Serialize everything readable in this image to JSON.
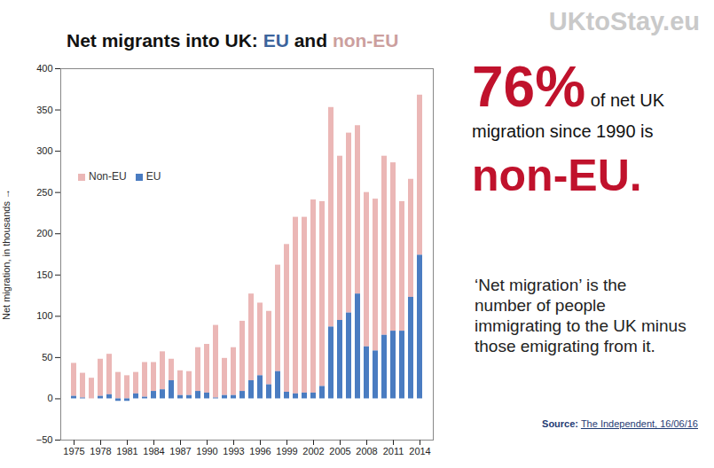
{
  "chart_data": {
    "type": "bar",
    "stacked": true,
    "title": "Net migrants into UK: EU and non-EU",
    "y_label": "Net migration, in thousands",
    "categories": [
      "1975",
      null,
      null,
      "1978",
      null,
      null,
      "1981",
      null,
      null,
      "1984",
      null,
      null,
      "1987",
      null,
      null,
      "1990",
      null,
      null,
      "1993",
      null,
      null,
      "1996",
      null,
      null,
      "1999",
      null,
      null,
      "2002",
      null,
      null,
      "2005",
      null,
      null,
      "2008",
      null,
      null,
      "2011",
      null,
      null,
      "2014"
    ],
    "series": [
      {
        "name": "Non-EU",
        "color": "#ebb7b6",
        "values": [
          40,
          30,
          25,
          45,
          49,
          32,
          28,
          26,
          42,
          35,
          46,
          26,
          30,
          29,
          53,
          59,
          88,
          45,
          58,
          85,
          105,
          88,
          89,
          129,
          179,
          214,
          213,
          234,
          224,
          266,
          199,
          218,
          204,
          187,
          184,
          217,
          204,
          157,
          143,
          194
        ]
      },
      {
        "name": "EU",
        "color": "#4a7cc1",
        "values": [
          3,
          1,
          0,
          3,
          5,
          -3,
          -3,
          6,
          2,
          9,
          11,
          22,
          4,
          4,
          9,
          7,
          1,
          4,
          4,
          9,
          22,
          28,
          17,
          33,
          8,
          6,
          7,
          7,
          15,
          87,
          95,
          104,
          127,
          63,
          58,
          77,
          82,
          82,
          123,
          174
        ]
      }
    ],
    "ylim": [
      -50,
      400
    ],
    "yticks": [
      -50,
      0,
      50,
      100,
      150,
      200,
      250,
      300,
      350,
      400
    ],
    "grid": false,
    "legend": "top-left",
    "logo": "UKtoStay.eu",
    "callout": [
      "76%",
      "of net UK migration since 1990 is",
      "non-EU."
    ],
    "definition": "‘Net migration’ is the number of people immigrating to the UK minus those emigrating from it.",
    "source_label": "Source:",
    "source": "The Independent, 16/06/16"
  }
}
